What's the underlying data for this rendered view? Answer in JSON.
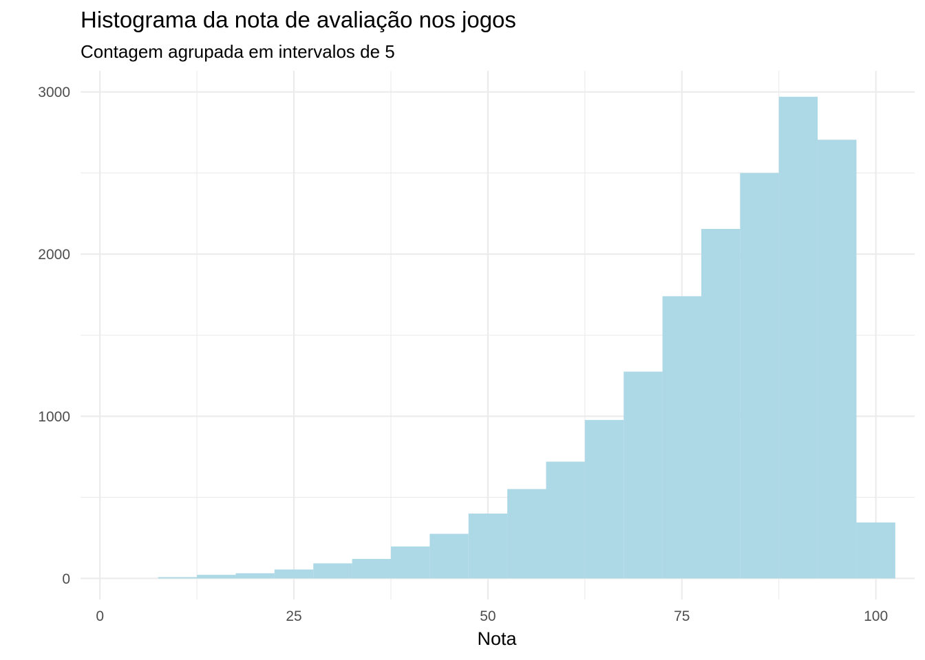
{
  "chart_data": {
    "type": "bar",
    "title": "Histograma da nota de avaliação nos jogos",
    "subtitle": "Contagem agrupada em intervalos de 5",
    "xlabel": "Nota",
    "ylabel": "",
    "xlim": [
      -2.5,
      105
    ],
    "ylim": [
      -130,
      3130
    ],
    "x_ticks": [
      0,
      25,
      50,
      75,
      100
    ],
    "x_tick_labels": [
      "0",
      "25",
      "50",
      "75",
      "100"
    ],
    "y_ticks": [
      0,
      1000,
      2000,
      3000
    ],
    "y_tick_labels": [
      "0",
      "1000",
      "2000",
      "3000"
    ],
    "bin_width": 5,
    "bins": [
      {
        "x_min": 7.5,
        "x_max": 12.5,
        "count": 8
      },
      {
        "x_min": 12.5,
        "x_max": 17.5,
        "count": 22
      },
      {
        "x_min": 17.5,
        "x_max": 22.5,
        "count": 32
      },
      {
        "x_min": 22.5,
        "x_max": 27.5,
        "count": 55
      },
      {
        "x_min": 27.5,
        "x_max": 32.5,
        "count": 93
      },
      {
        "x_min": 32.5,
        "x_max": 37.5,
        "count": 120
      },
      {
        "x_min": 37.5,
        "x_max": 42.5,
        "count": 197
      },
      {
        "x_min": 42.5,
        "x_max": 47.5,
        "count": 275
      },
      {
        "x_min": 47.5,
        "x_max": 52.5,
        "count": 400
      },
      {
        "x_min": 52.5,
        "x_max": 57.5,
        "count": 551
      },
      {
        "x_min": 57.5,
        "x_max": 62.5,
        "count": 720
      },
      {
        "x_min": 62.5,
        "x_max": 67.5,
        "count": 977
      },
      {
        "x_min": 67.5,
        "x_max": 72.5,
        "count": 1275
      },
      {
        "x_min": 72.5,
        "x_max": 77.5,
        "count": 1740
      },
      {
        "x_min": 77.5,
        "x_max": 82.5,
        "count": 2155
      },
      {
        "x_min": 82.5,
        "x_max": 87.5,
        "count": 2500
      },
      {
        "x_min": 87.5,
        "x_max": 92.5,
        "count": 2970
      },
      {
        "x_min": 92.5,
        "x_max": 97.5,
        "count": 2705
      },
      {
        "x_min": 97.5,
        "x_max": 102.5,
        "count": 345
      }
    ],
    "bar_color": "#ADD8E6",
    "grid": true,
    "legend": "none"
  }
}
